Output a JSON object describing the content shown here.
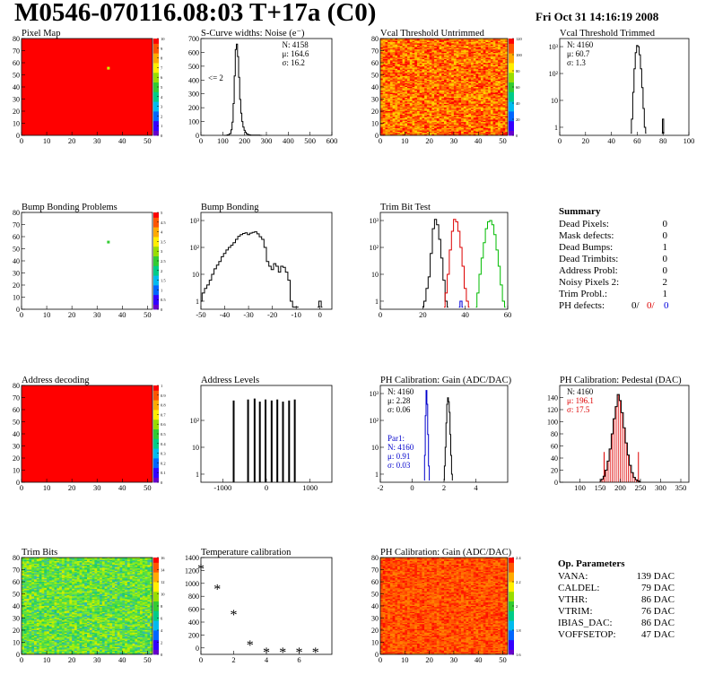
{
  "page": {
    "title": "M0546-070116.08:03 T+17a (C0)",
    "date": "Fri Oct 31 14:16:19 2008"
  },
  "chart_data": [
    {
      "id": "pixel-map",
      "type": "heatmap",
      "title": "Pixel Map",
      "xlim": [
        0,
        52
      ],
      "ylim": [
        0,
        80
      ],
      "xticks": [
        0,
        10,
        20,
        30,
        40,
        50
      ],
      "yticks": [
        0,
        10,
        20,
        30,
        40,
        50,
        60,
        70,
        80
      ],
      "zlim": [
        0,
        10
      ],
      "zticks": [
        "0",
        "1",
        "2",
        "3",
        "4",
        "5",
        "6",
        "7",
        "8",
        "9",
        "10"
      ],
      "fill": "#ff0000",
      "points": [
        {
          "x": 34.5,
          "y": 55.5,
          "color": "#ccff00"
        }
      ]
    },
    {
      "id": "scurve-noise",
      "type": "line",
      "title": "S-Curve widths: Noise (e⁻)",
      "xlim": [
        0,
        600
      ],
      "ylim": [
        0,
        700
      ],
      "xticks": [
        0,
        100,
        200,
        300,
        400,
        500,
        600
      ],
      "yticks": [
        0,
        100,
        200,
        300,
        400,
        500,
        600,
        700
      ],
      "stats": [
        "N: 4158",
        "μ: 164.6",
        "σ: 16.2"
      ],
      "annotation": "<= 2",
      "x": [
        105,
        115,
        125,
        135,
        140,
        145,
        150,
        155,
        160,
        165,
        170,
        175,
        180,
        185,
        190,
        195,
        200,
        205,
        210,
        215,
        220,
        225,
        230,
        240,
        250,
        260,
        280
      ],
      "y": [
        0,
        0,
        4,
        12,
        40,
        95,
        230,
        430,
        620,
        660,
        570,
        420,
        260,
        160,
        100,
        60,
        36,
        22,
        12,
        8,
        5,
        3,
        2,
        1,
        1,
        1,
        0
      ]
    },
    {
      "id": "vcal-untrimmed",
      "type": "heatmap",
      "title": "Vcal Threshold Untrimmed",
      "xlim": [
        0,
        52
      ],
      "ylim": [
        0,
        80
      ],
      "xticks": [
        0,
        10,
        20,
        30,
        40,
        50
      ],
      "yticks": [
        0,
        10,
        20,
        30,
        40,
        50,
        60,
        70,
        80
      ],
      "zlim": [
        0,
        140
      ],
      "zticks": [
        "0",
        "20",
        "40",
        "60",
        "80",
        "100",
        "120"
      ],
      "seed": 7,
      "palette": [
        "#ffd000",
        "#ffb000",
        "#ff9000",
        "#ff7000",
        "#ff5000",
        "#ff3000",
        "#ff0000"
      ]
    },
    {
      "id": "vcal-trimmed",
      "type": "line",
      "title": "Vcal Threshold Trimmed",
      "ylog": true,
      "xlim": [
        0,
        100
      ],
      "ylim": [
        0.5,
        2000
      ],
      "xticks": [
        0,
        20,
        40,
        60,
        80,
        100
      ],
      "yticks": [
        "1",
        "10",
        "10²",
        "10³"
      ],
      "ytickvals": [
        1,
        10,
        100,
        1000
      ],
      "stats": [
        "N: 4160",
        "μ: 60.7",
        "σ: 1.3"
      ],
      "x": [
        55,
        56,
        57,
        58,
        59,
        60,
        61,
        62,
        63,
        64,
        65,
        66,
        67
      ],
      "y": [
        0.6,
        2,
        20,
        150,
        600,
        1100,
        1000,
        500,
        150,
        30,
        5,
        1,
        0.6
      ],
      "x2": [
        79,
        80,
        81
      ],
      "y2": [
        0.6,
        2,
        0.6
      ]
    },
    {
      "id": "bump-problems",
      "type": "heatmap",
      "title": "Bump Bonding Problems",
      "xlim": [
        0,
        52
      ],
      "ylim": [
        0,
        80
      ],
      "xticks": [
        0,
        10,
        20,
        30,
        40,
        50
      ],
      "yticks": [
        0,
        10,
        20,
        30,
        40,
        50,
        60,
        70,
        80
      ],
      "zlim": [
        0,
        5
      ],
      "zticks": [
        "0",
        "0.5",
        "1",
        "1.5",
        "2",
        "2.5",
        "3",
        "3.5",
        "4",
        "4.5",
        "5"
      ],
      "fill": "#ffffff",
      "points": [
        {
          "x": 34.5,
          "y": 55.5,
          "color": "#33cc33"
        }
      ]
    },
    {
      "id": "bump-bonding",
      "type": "line",
      "title": "Bump Bonding",
      "ylog": true,
      "xlim": [
        -50,
        5
      ],
      "ylim": [
        0.5,
        2000
      ],
      "xticks": [
        -50,
        -40,
        -30,
        -20,
        -10,
        0
      ],
      "yticks": [
        "1",
        "10",
        "10²",
        "10³"
      ],
      "ytickvals": [
        1,
        10,
        100,
        1000
      ],
      "x": [
        -50,
        -49,
        -48,
        -47,
        -46,
        -45,
        -44,
        -43,
        -42,
        -41,
        -40,
        -39,
        -38,
        -37,
        -36,
        -35,
        -34,
        -33,
        -32,
        -31,
        -30,
        -29,
        -28,
        -27,
        -26,
        -25,
        -24,
        -23,
        -22,
        -21,
        -20,
        -19,
        -18,
        -17,
        -16,
        -15,
        -14,
        -13,
        -12,
        -11,
        -10,
        -9
      ],
      "y": [
        1,
        2,
        3,
        4,
        6,
        10,
        16,
        22,
        30,
        45,
        60,
        80,
        100,
        120,
        150,
        200,
        260,
        300,
        330,
        350,
        300,
        340,
        360,
        380,
        320,
        250,
        200,
        100,
        30,
        20,
        15,
        25,
        20,
        12,
        20,
        18,
        12,
        6,
        1,
        0.6,
        0.6,
        0.6
      ],
      "x2": [
        -1,
        0,
        1
      ],
      "y2": [
        0.6,
        1,
        0.6
      ]
    },
    {
      "id": "trim-bit-test",
      "type": "line",
      "title": "Trim Bit Test",
      "ylog": true,
      "xlim": [
        0,
        60
      ],
      "ylim": [
        0.5,
        2000
      ],
      "xticks": [
        0,
        20,
        40,
        60
      ],
      "yticks": [
        "1",
        "10",
        "10²",
        "10³"
      ],
      "ytickvals": [
        1,
        10,
        100,
        1000
      ],
      "series": [
        {
          "color": "#000000",
          "x": [
            20,
            21,
            22,
            23,
            24,
            25,
            26,
            27,
            28,
            29,
            30,
            31,
            32
          ],
          "y": [
            0.6,
            1,
            3,
            8,
            60,
            500,
            1100,
            700,
            200,
            40,
            6,
            1,
            0.6
          ]
        },
        {
          "color": "#dd0000",
          "x": [
            30,
            31,
            32,
            33,
            34,
            35,
            36,
            37,
            38,
            39,
            40,
            41,
            42
          ],
          "y": [
            0.6,
            2,
            10,
            80,
            400,
            1100,
            900,
            400,
            100,
            20,
            3,
            1,
            0.6
          ]
        },
        {
          "color": "#00bb00",
          "x": [
            45,
            46,
            47,
            48,
            49,
            50,
            51,
            52,
            53,
            54,
            55,
            56,
            57,
            58,
            59
          ],
          "y": [
            0.6,
            2,
            10,
            40,
            150,
            500,
            900,
            1000,
            700,
            300,
            80,
            20,
            4,
            1,
            0.6
          ]
        },
        {
          "color": "#0000dd",
          "x": [
            37,
            38,
            39
          ],
          "y": [
            0.6,
            1,
            0.6
          ]
        }
      ]
    },
    {
      "id": "address-decoding",
      "type": "heatmap",
      "title": "Address decoding",
      "xlim": [
        0,
        52
      ],
      "ylim": [
        0,
        80
      ],
      "xticks": [
        0,
        10,
        20,
        30,
        40,
        50
      ],
      "yticks": [
        0,
        10,
        20,
        30,
        40,
        50,
        60,
        70,
        80
      ],
      "zlim": [
        0,
        1
      ],
      "zticks": [
        "0",
        "0.1",
        "0.2",
        "0.3",
        "0.4",
        "0.5",
        "0.6",
        "0.7",
        "0.8",
        "0.9",
        "1"
      ],
      "fill": "#ff0000",
      "points": []
    },
    {
      "id": "address-levels",
      "type": "line",
      "title": "Address Levels",
      "ylog": true,
      "xlim": [
        -1500,
        1500
      ],
      "ylim": [
        0.5,
        2000
      ],
      "xticks": [
        -1000,
        0,
        1000
      ],
      "yticks": [
        "1",
        "10",
        "10²"
      ],
      "ytickvals": [
        1,
        10,
        100
      ],
      "spikes": [
        [
          -750,
          550
        ],
        [
          -420,
          600
        ],
        [
          -270,
          650
        ],
        [
          -150,
          500
        ],
        [
          -20,
          600
        ],
        [
          120,
          550
        ],
        [
          250,
          600
        ],
        [
          380,
          500
        ],
        [
          520,
          550
        ],
        [
          650,
          600
        ]
      ]
    },
    {
      "id": "ph-gain",
      "type": "line",
      "title": "PH Calibration: Gain (ADC/DAC)",
      "ylog": true,
      "xlim": [
        -2,
        6
      ],
      "ylim": [
        0.5,
        2000
      ],
      "xticks": [
        -2,
        0,
        2,
        4
      ],
      "yticks": [
        "1",
        "10",
        "10²",
        "10³"
      ],
      "ytickvals": [
        1,
        10,
        100,
        1000
      ],
      "stats": [
        "N: 4160",
        "μ: 2.28",
        "σ: 0.06"
      ],
      "stats2": [
        "Par1:",
        "N: 4160",
        "μ: 0.91",
        "σ: 0.03"
      ],
      "series": [
        {
          "color": "#000000",
          "x": [
            2.0,
            2.05,
            2.1,
            2.15,
            2.2,
            2.25,
            2.3,
            2.35,
            2.4,
            2.45,
            2.5,
            2.55
          ],
          "y": [
            0.6,
            2,
            10,
            80,
            400,
            700,
            500,
            200,
            30,
            5,
            1,
            0.6
          ]
        },
        {
          "color": "#0000cc",
          "x": [
            0.75,
            0.8,
            0.85,
            0.9,
            0.95,
            1.0,
            1.05,
            1.1
          ],
          "y": [
            0.6,
            5,
            150,
            1300,
            400,
            30,
            2,
            0.6
          ]
        }
      ]
    },
    {
      "id": "ph-pedestal",
      "type": "line",
      "title": "PH Calibration: Pedestal (DAC)",
      "xlim": [
        50,
        370
      ],
      "ylim": [
        0,
        160
      ],
      "xticks": [
        100,
        150,
        200,
        250,
        300,
        350
      ],
      "yticks": [
        0,
        20,
        40,
        60,
        80,
        100,
        120,
        140
      ],
      "stats": [
        "N: 4160"
      ],
      "stats_red": [
        "μ: 196.1",
        "σ: 17.5"
      ],
      "x": [
        150,
        155,
        160,
        165,
        170,
        175,
        180,
        185,
        190,
        195,
        200,
        205,
        210,
        215,
        220,
        225,
        230,
        235,
        240,
        245,
        250
      ],
      "y": [
        2,
        5,
        10,
        20,
        35,
        55,
        80,
        105,
        125,
        145,
        135,
        115,
        90,
        65,
        45,
        28,
        16,
        8,
        4,
        2,
        1
      ],
      "cuts": [
        160,
        245
      ]
    },
    {
      "id": "trim-bits",
      "type": "heatmap",
      "title": "Trim Bits",
      "xlim": [
        0,
        52
      ],
      "ylim": [
        0,
        80
      ],
      "xticks": [
        0,
        10,
        20,
        30,
        40,
        50
      ],
      "yticks": [
        0,
        10,
        20,
        30,
        40,
        50,
        60,
        70,
        80
      ],
      "zlim": [
        0,
        16
      ],
      "zticks": [
        "0",
        "2",
        "4",
        "6",
        "8",
        "10",
        "12",
        "14",
        "16"
      ],
      "seed": 3,
      "palette": [
        "#22cc66",
        "#44dd44",
        "#66dd33",
        "#88ee22",
        "#aaee00",
        "#ccee00",
        "#33bbaa",
        "#55dd55"
      ]
    },
    {
      "id": "temperature-calibration",
      "type": "scatter",
      "title": "Temperature calibration",
      "xlim": [
        0,
        8
      ],
      "ylim": [
        -100,
        1400
      ],
      "xticks": [
        0,
        2,
        4,
        6
      ],
      "yticks": [
        0,
        200,
        400,
        600,
        800,
        1000,
        1200,
        1400
      ],
      "x": [
        0,
        1,
        2,
        3,
        4,
        5,
        6,
        7
      ],
      "y": [
        1260,
        950,
        550,
        80,
        -30,
        -30,
        -30,
        -30
      ]
    },
    {
      "id": "ph-gain-map",
      "type": "heatmap",
      "title": "PH Calibration: Gain (ADC/DAC)",
      "xlim": [
        0,
        52
      ],
      "ylim": [
        0,
        80
      ],
      "xticks": [
        0,
        10,
        20,
        30,
        40,
        50
      ],
      "yticks": [
        0,
        10,
        20,
        30,
        40,
        50,
        60,
        70,
        80
      ],
      "zlim": [
        1.4,
        2.5
      ],
      "zticks": [
        "1.6",
        "1.8",
        "2",
        "2.2",
        "2.4"
      ],
      "seed": 11,
      "palette": [
        "#ff2000",
        "#ff4000",
        "#ff6000",
        "#ff8000",
        "#ff1000",
        "#ff5000"
      ],
      "colband": true
    }
  ],
  "summary": {
    "title": "Summary",
    "rows": [
      {
        "label": "Dead Pixels:",
        "value": "0"
      },
      {
        "label": "Mask defects:",
        "value": "0"
      },
      {
        "label": "Dead Bumps:",
        "value": "1"
      },
      {
        "label": "Dead Trimbits:",
        "value": "0"
      },
      {
        "label": "Address Probl:",
        "value": "0"
      },
      {
        "label": "Noisy Pixels 2:",
        "value": "2"
      },
      {
        "label": "Trim Probl.:",
        "value": "1"
      }
    ],
    "ph_label": "PH defects:",
    "ph_values": [
      {
        "value": "0/",
        "color": "#000000"
      },
      {
        "value": "0/",
        "color": "#dd0000"
      },
      {
        "value": "0",
        "color": "#0000dd"
      }
    ]
  },
  "op_params": {
    "title": "Op. Parameters",
    "rows": [
      {
        "label": "VANA:",
        "value": "139 DAC"
      },
      {
        "label": "CALDEL:",
        "value": "79 DAC"
      },
      {
        "label": "VTHR:",
        "value": "86 DAC"
      },
      {
        "label": "VTRIM:",
        "value": "76 DAC"
      },
      {
        "label": "IBIAS_DAC:",
        "value": "86 DAC"
      },
      {
        "label": "VOFFSETOP:",
        "value": "47 DAC"
      }
    ]
  }
}
